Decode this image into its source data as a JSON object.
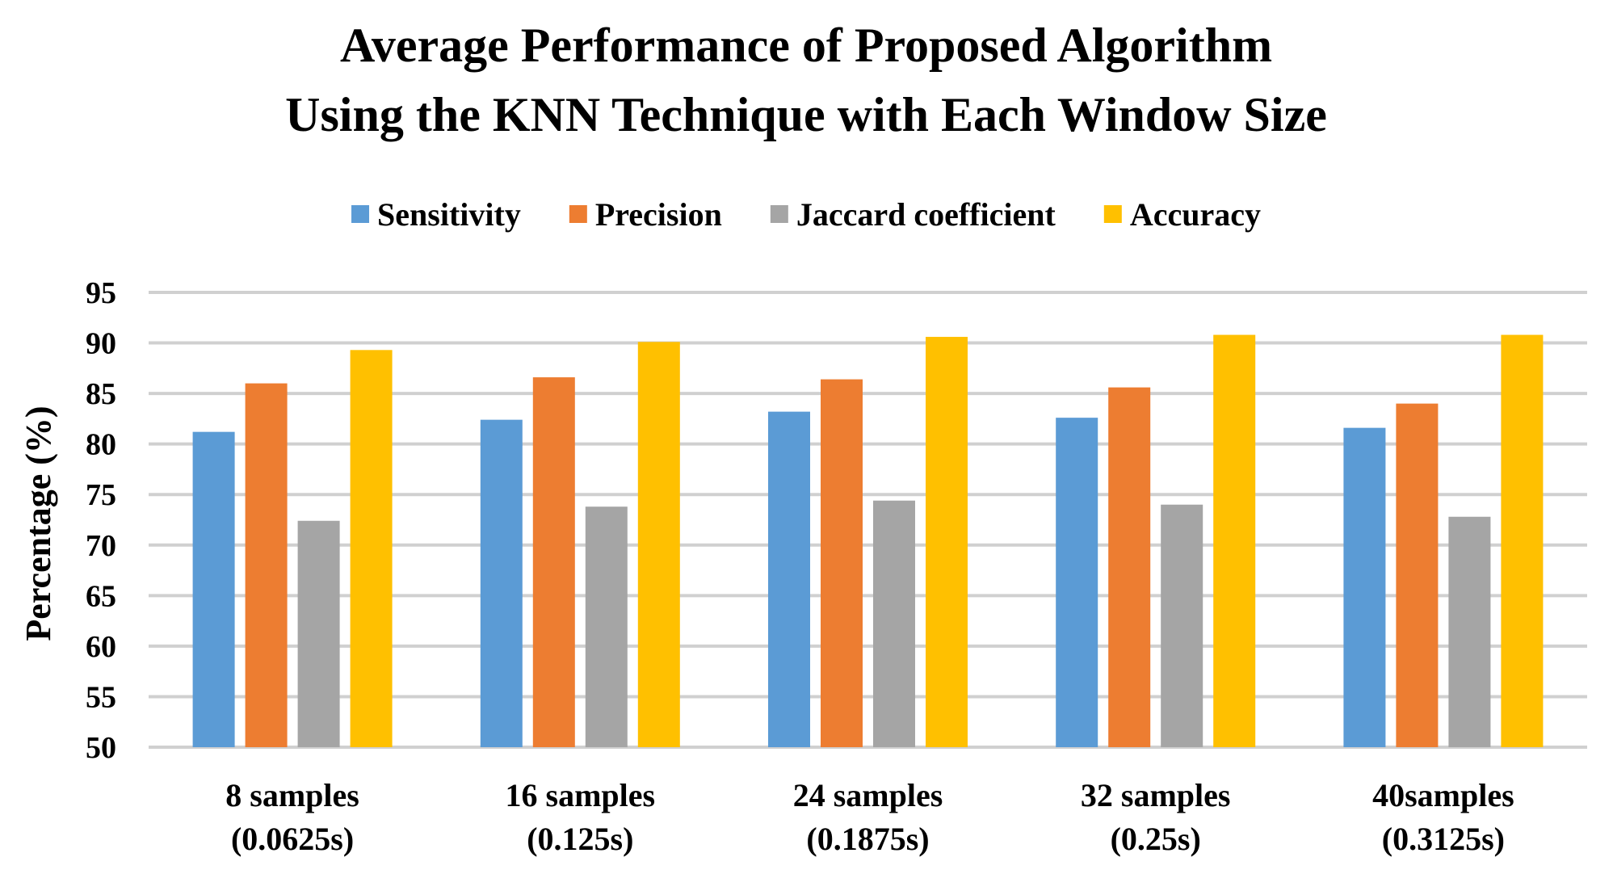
{
  "chart_data": {
    "type": "bar",
    "title": [
      "Average Performance of Proposed Algorithm",
      "Using the KNN Technique with Each Window Size"
    ],
    "xlabel": "",
    "ylabel": "Percentage (%)",
    "ylim": [
      50,
      95
    ],
    "yticks": [
      50,
      55,
      60,
      65,
      70,
      75,
      80,
      85,
      90,
      95
    ],
    "grid": true,
    "legend_position": "top",
    "categories": [
      [
        "8 samples",
        "(0.0625s)"
      ],
      [
        "16 samples",
        "(0.125s)"
      ],
      [
        "24 samples",
        "(0.1875s)"
      ],
      [
        "32 samples",
        "(0.25s)"
      ],
      [
        "40samples",
        "(0.3125s)"
      ]
    ],
    "series": [
      {
        "name": "Sensitivity",
        "color": "#5B9BD5",
        "values": [
          81.2,
          82.4,
          83.2,
          82.6,
          81.6
        ]
      },
      {
        "name": "Precision",
        "color": "#ED7D31",
        "values": [
          86.0,
          86.6,
          86.4,
          85.6,
          84.0
        ]
      },
      {
        "name": "Jaccard coefficient",
        "color": "#A5A5A5",
        "values": [
          72.4,
          73.8,
          74.4,
          74.0,
          72.8
        ]
      },
      {
        "name": "Accuracy",
        "color": "#FFC000",
        "values": [
          89.3,
          90.1,
          90.6,
          90.8,
          90.8
        ]
      }
    ]
  }
}
